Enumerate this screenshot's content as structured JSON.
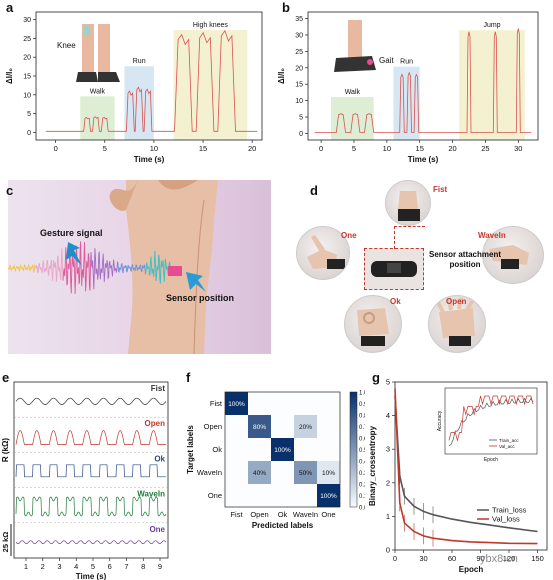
{
  "panels": {
    "a": {
      "letter": "a",
      "ylabel": "ΔI/I₀",
      "xlabel": "Time (s)",
      "leg_label": "Knee",
      "regions": [
        "Walk",
        "Run",
        "High knees"
      ],
      "xticks": [
        "0",
        "5",
        "10",
        "15",
        "20"
      ],
      "yticks": [
        "0",
        "5",
        "10",
        "15",
        "20",
        "25",
        "30"
      ]
    },
    "b": {
      "letter": "b",
      "ylabel": "ΔI/I₀",
      "xlabel": "Time (s)",
      "leg_label": "Gait",
      "regions": [
        "Walk",
        "Run",
        "Jump"
      ],
      "xticks": [
        "0",
        "5",
        "10",
        "15",
        "20",
        "25",
        "30"
      ],
      "yticks": [
        "0",
        "5",
        "10",
        "15",
        "20",
        "25",
        "30",
        "35"
      ]
    },
    "c": {
      "letter": "c",
      "label_gesture": "Gesture signal",
      "label_sensor": "Sensor position"
    },
    "d": {
      "letter": "d",
      "gestures": [
        "Fist",
        "One",
        "WaveIn",
        "Ok",
        "Open"
      ],
      "center_label": "Sensor attachment position"
    },
    "e": {
      "letter": "e",
      "ylabel": "R (kΩ)",
      "scale_label": "25 kΩ",
      "xlabel": "Time (s)",
      "xticks": [
        "1",
        "2",
        "3",
        "4",
        "5",
        "6",
        "7",
        "8",
        "9"
      ],
      "traces": [
        {
          "name": "Fist",
          "color": "#333333"
        },
        {
          "name": "Open",
          "color": "#c0392b"
        },
        {
          "name": "Ok",
          "color": "#2c4a8a"
        },
        {
          "name": "WaveIn",
          "color": "#1f7a3a"
        },
        {
          "name": "One",
          "color": "#6a3d9a"
        }
      ]
    },
    "f": {
      "letter": "f",
      "xlabel": "Predicted labels",
      "ylabel": "Target labels",
      "colorbar_ticks": [
        "1.0",
        "0.9",
        "0.8",
        "0.7",
        "0.6",
        "0.5",
        "0.4",
        "0.3",
        "0.2",
        "0.1",
        "0.0"
      ]
    },
    "g": {
      "letter": "g",
      "xlabel": "Epoch",
      "ylabel": "Binary_crossentropy",
      "inset_xlabel": "Epoch",
      "inset_ylabel": "Accuracy"
    }
  },
  "chart_data": [
    {
      "type": "line",
      "panel": "a",
      "xlabel": "Time (s)",
      "ylabel": "ΔI/I₀",
      "xlim": [
        -2,
        21
      ],
      "ylim": [
        -2,
        32
      ],
      "regions": [
        {
          "label": "Walk",
          "x": [
            2.5,
            6
          ],
          "color": "#d9ecd0"
        },
        {
          "label": "Run",
          "x": [
            7,
            10
          ],
          "color": "#d3e3f2"
        },
        {
          "label": "High knees",
          "x": [
            12,
            19.5
          ],
          "color": "#f3f0cc"
        }
      ]
    },
    {
      "type": "line",
      "panel": "b",
      "xlabel": "Time (s)",
      "ylabel": "ΔI/I₀",
      "xlim": [
        -2,
        33
      ],
      "ylim": [
        -2,
        37
      ],
      "regions": [
        {
          "label": "Walk",
          "x": [
            1.5,
            8
          ],
          "color": "#d9ecd0"
        },
        {
          "label": "Run",
          "x": [
            11,
            15
          ],
          "color": "#d3e3f2"
        },
        {
          "label": "Jump",
          "x": [
            21,
            31
          ],
          "color": "#f3f0cc"
        }
      ]
    },
    {
      "type": "heatmap",
      "panel": "f",
      "xlabel": "Predicted labels",
      "ylabel": "Target labels",
      "x_categories": [
        "Fist",
        "Open",
        "Ok",
        "WaveIn",
        "One"
      ],
      "y_categories": [
        "Fist",
        "Open",
        "Ok",
        "WaveIn",
        "One"
      ],
      "cells": [
        {
          "row": 0,
          "col": 0,
          "value": 1.0,
          "label": "100%"
        },
        {
          "row": 1,
          "col": 1,
          "value": 0.8,
          "label": "80%"
        },
        {
          "row": 1,
          "col": 3,
          "value": 0.2,
          "label": "20%"
        },
        {
          "row": 2,
          "col": 2,
          "value": 1.0,
          "label": "100%"
        },
        {
          "row": 3,
          "col": 1,
          "value": 0.4,
          "label": "40%"
        },
        {
          "row": 3,
          "col": 3,
          "value": 0.5,
          "label": "50%"
        },
        {
          "row": 3,
          "col": 4,
          "value": 0.1,
          "label": "10%"
        },
        {
          "row": 4,
          "col": 4,
          "value": 1.0,
          "label": "100%"
        }
      ],
      "colorbar_range": [
        0,
        1
      ]
    },
    {
      "type": "line",
      "panel": "g",
      "xlabel": "Epoch",
      "ylabel": "Binary_crossentropy",
      "xlim": [
        0,
        160
      ],
      "ylim": [
        0,
        5
      ],
      "xticks": [
        "0",
        "30",
        "60",
        "90",
        "120",
        "150"
      ],
      "yticks": [
        "0",
        "1",
        "2",
        "3",
        "4",
        "5"
      ],
      "series": [
        {
          "name": "Train_loss",
          "color": "#555555",
          "x": [
            0,
            5,
            10,
            20,
            30,
            40,
            60,
            80,
            100,
            120,
            150
          ],
          "y": [
            4.6,
            2.2,
            1.6,
            1.3,
            1.15,
            1.05,
            0.92,
            0.82,
            0.74,
            0.66,
            0.55
          ]
        },
        {
          "name": "Val_loss",
          "color": "#c0392b",
          "x": [
            0,
            5,
            10,
            20,
            30,
            40,
            60,
            80,
            100,
            120,
            150
          ],
          "y": [
            4.8,
            1.4,
            0.8,
            0.55,
            0.42,
            0.35,
            0.28,
            0.24,
            0.22,
            0.2,
            0.19
          ]
        }
      ],
      "inset": {
        "xlabel": "Epoch",
        "ylabel": "Accuracy",
        "series": [
          {
            "name": "Train_acc",
            "color": "#555555"
          },
          {
            "name": "Val_acc",
            "color": "#c0392b"
          }
        ]
      }
    }
  ],
  "watermark": "ybx8.cn"
}
